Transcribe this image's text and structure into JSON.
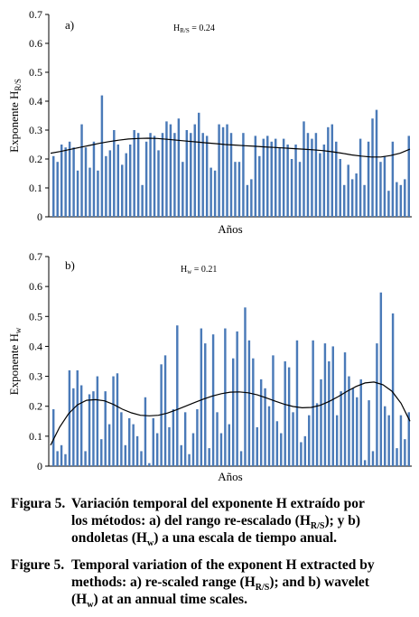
{
  "chart_data": [
    {
      "type": "bar",
      "panel_label": "a)",
      "annotation": "H_R/S = 0.24",
      "annotation_parts": [
        "H",
        "R/S",
        " = 0.24"
      ],
      "ylabel_parts": [
        "Exponente H",
        "R/S"
      ],
      "xlabel": "Años",
      "ylim": [
        0,
        0.7
      ],
      "yticks": [
        "0",
        "0.1",
        "0.2",
        "0.3",
        "0.4",
        "0.5",
        "0.6",
        "0.7"
      ],
      "grid": false,
      "bar_color": "#4a7ab8",
      "values": [
        0.21,
        0.19,
        0.25,
        0.24,
        0.26,
        0.24,
        0.16,
        0.32,
        0.24,
        0.17,
        0.26,
        0.16,
        0.42,
        0.21,
        0.23,
        0.3,
        0.25,
        0.18,
        0.22,
        0.25,
        0.3,
        0.29,
        0.11,
        0.26,
        0.29,
        0.28,
        0.23,
        0.29,
        0.33,
        0.32,
        0.29,
        0.34,
        0.19,
        0.3,
        0.29,
        0.32,
        0.36,
        0.29,
        0.28,
        0.17,
        0.16,
        0.32,
        0.31,
        0.32,
        0.29,
        0.19,
        0.19,
        0.29,
        0.11,
        0.13,
        0.28,
        0.21,
        0.27,
        0.28,
        0.26,
        0.27,
        0.24,
        0.27,
        0.25,
        0.2,
        0.25,
        0.19,
        0.33,
        0.29,
        0.27,
        0.29,
        0.22,
        0.25,
        0.31,
        0.32,
        0.26,
        0.2,
        0.11,
        0.18,
        0.13,
        0.15,
        0.27,
        0.11,
        0.26,
        0.34,
        0.37,
        0.19,
        0.21,
        0.09,
        0.26,
        0.12,
        0.11,
        0.13,
        0.28
      ],
      "trend": [
        0.22,
        0.226,
        0.233,
        0.24,
        0.247,
        0.254,
        0.26,
        0.265,
        0.269,
        0.271,
        0.272,
        0.271,
        0.268,
        0.265,
        0.262,
        0.259,
        0.256,
        0.253,
        0.25,
        0.248,
        0.246,
        0.244,
        0.242,
        0.24,
        0.238,
        0.236,
        0.234,
        0.232,
        0.229,
        0.225,
        0.22,
        0.214,
        0.21,
        0.207,
        0.207,
        0.212,
        0.22,
        0.234
      ]
    },
    {
      "type": "bar",
      "panel_label": "b)",
      "annotation": "Hw = 0.21",
      "annotation_parts": [
        "H",
        "w",
        " = 0.21"
      ],
      "ylabel_parts": [
        "Exponente H",
        "w"
      ],
      "xlabel": "Años",
      "ylim": [
        0,
        0.7
      ],
      "yticks": [
        "0",
        "0.1",
        "0.2",
        "0.3",
        "0.4",
        "0.5",
        "0.6",
        "0.7"
      ],
      "grid": false,
      "bar_color": "#4a7ab8",
      "values": [
        0.19,
        0.05,
        0.07,
        0.04,
        0.32,
        0.26,
        0.32,
        0.27,
        0.05,
        0.24,
        0.25,
        0.3,
        0.09,
        0.25,
        0.14,
        0.3,
        0.31,
        0.18,
        0.07,
        0.16,
        0.14,
        0.1,
        0.05,
        0.23,
        0.01,
        0.16,
        0.11,
        0.34,
        0.37,
        0.13,
        0.19,
        0.47,
        0.07,
        0.18,
        0.04,
        0.11,
        0.19,
        0.46,
        0.41,
        0.06,
        0.44,
        0.18,
        0.11,
        0.46,
        0.14,
        0.36,
        0.45,
        0.05,
        0.53,
        0.42,
        0.36,
        0.13,
        0.29,
        0.26,
        0.2,
        0.37,
        0.15,
        0.11,
        0.35,
        0.33,
        0.18,
        0.42,
        0.08,
        0.1,
        0.17,
        0.42,
        0.21,
        0.29,
        0.41,
        0.35,
        0.4,
        0.17,
        0.25,
        0.38,
        0.3,
        0.26,
        0.23,
        0.29,
        0.02,
        0.22,
        0.05,
        0.41,
        0.58,
        0.2,
        0.17,
        0.51,
        0.06,
        0.17,
        0.09,
        0.18
      ],
      "trend": [
        0.07,
        0.13,
        0.175,
        0.205,
        0.22,
        0.222,
        0.218,
        0.206,
        0.19,
        0.178,
        0.17,
        0.168,
        0.17,
        0.177,
        0.188,
        0.2,
        0.212,
        0.224,
        0.234,
        0.242,
        0.247,
        0.248,
        0.245,
        0.238,
        0.228,
        0.217,
        0.207,
        0.199,
        0.195,
        0.196,
        0.203,
        0.216,
        0.232,
        0.25,
        0.266,
        0.278,
        0.281,
        0.272,
        0.25,
        0.21,
        0.15
      ]
    }
  ],
  "caption": {
    "es": {
      "head": "Figura 5.",
      "lines": [
        [
          "Variación temporal del exponente H extraído por"
        ],
        [
          "los métodos: a) del rango re-escalado (H",
          "R/S",
          "); y b)"
        ],
        [
          "ondoletas (H",
          "w",
          ") a una escala de tiempo anual."
        ]
      ]
    },
    "en": {
      "head": "Figure 5.",
      "lines": [
        [
          "Temporal variation of the exponent H extracted by"
        ],
        [
          "methods: a) re-scaled range (H",
          "R/S",
          "); and b) wavelet"
        ],
        [
          "(H",
          "w",
          ") at an annual time scales."
        ]
      ]
    }
  }
}
